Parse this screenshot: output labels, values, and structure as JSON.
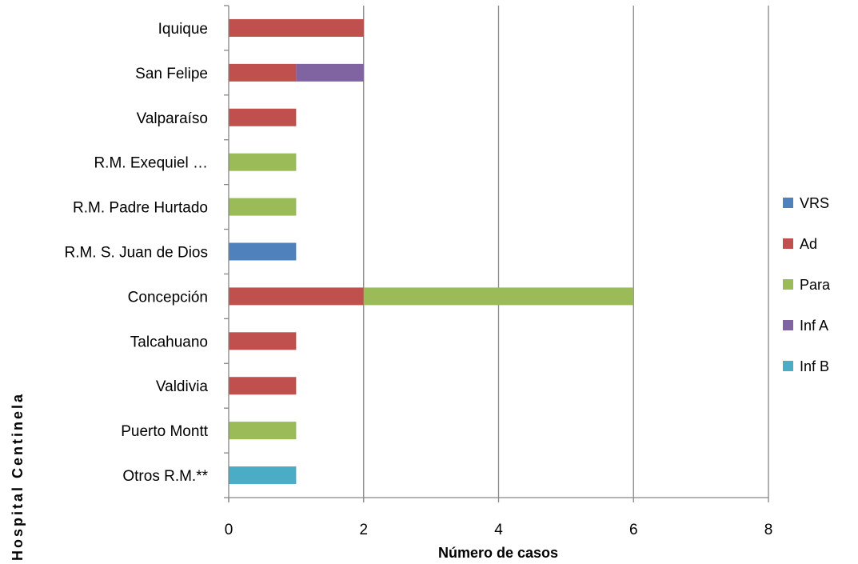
{
  "chart_data": {
    "type": "bar",
    "orientation": "horizontal",
    "stacked": true,
    "categories": [
      "Iquique",
      "San Felipe",
      "Valparaíso",
      "R.M. Exequiel …",
      "R.M. Padre Hurtado",
      "R.M. S. Juan de Dios",
      "Concepción",
      "Talcahuano",
      "Valdivia",
      "Puerto Montt",
      "Otros R.M.**"
    ],
    "series": [
      {
        "name": "VRS",
        "color": "#4f81bd",
        "values": [
          0,
          0,
          0,
          0,
          0,
          1,
          0,
          0,
          0,
          0,
          0
        ]
      },
      {
        "name": "Ad",
        "color": "#c0504d",
        "values": [
          2,
          1,
          1,
          0,
          0,
          0,
          2,
          1,
          1,
          0,
          0
        ]
      },
      {
        "name": "Para",
        "color": "#9bbb59",
        "values": [
          0,
          0,
          0,
          1,
          1,
          0,
          4,
          0,
          0,
          1,
          0
        ]
      },
      {
        "name": "Inf A",
        "color": "#8064a2",
        "values": [
          0,
          1,
          0,
          0,
          0,
          0,
          0,
          0,
          0,
          0,
          0
        ]
      },
      {
        "name": "Inf B",
        "color": "#4bacc6",
        "values": [
          0,
          0,
          0,
          0,
          0,
          0,
          0,
          0,
          0,
          0,
          1
        ]
      }
    ],
    "xlabel": "Número de casos",
    "ylabel": "Hospital Centinela",
    "xlim": [
      0,
      8
    ],
    "xticks": [
      "0",
      "2",
      "4",
      "6",
      "8"
    ],
    "grid": "vertical",
    "legend": "right"
  }
}
